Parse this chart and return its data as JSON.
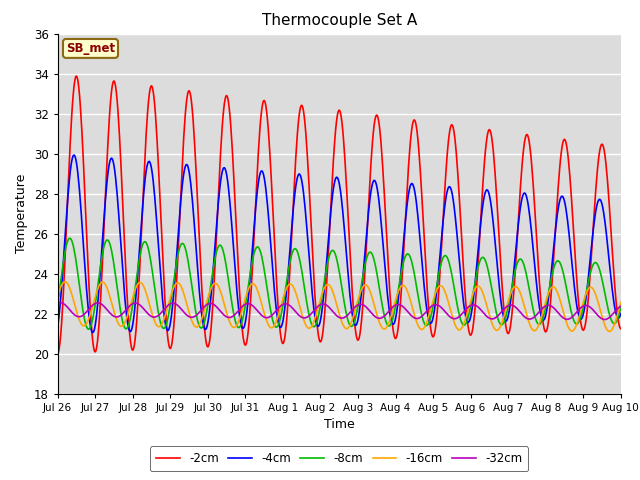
{
  "title": "Thermocouple Set A",
  "xlabel": "Time",
  "ylabel": "Temperature",
  "ylim": [
    18,
    36
  ],
  "yticks": [
    18,
    20,
    22,
    24,
    26,
    28,
    30,
    32,
    34,
    36
  ],
  "legend_labels": [
    "-2cm",
    "-4cm",
    "-8cm",
    "-16cm",
    "-32cm"
  ],
  "legend_colors": [
    "#ff0000",
    "#0000ff",
    "#00bb00",
    "#ffa500",
    "#bb00bb"
  ],
  "annotation_text": "SB_met",
  "bg_color": "#dcdcdc",
  "fig_color": "#ffffff",
  "tick_labels": [
    "Jul 26",
    "Jul 27",
    "Jul 28",
    "Jul 29",
    "Jul 30",
    "Jul 31",
    "Aug 1",
    "Aug 2",
    "Aug 3",
    "Aug 4",
    "Aug 5",
    "Aug 6",
    "Aug 7",
    "Aug 8",
    "Aug 9",
    "Aug 10"
  ],
  "n_days": 15,
  "n_per_day": 48
}
